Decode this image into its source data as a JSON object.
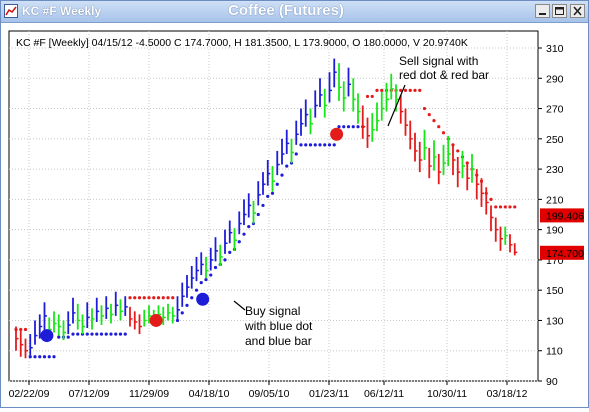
{
  "window": {
    "title_left": "KC #F Weekly",
    "title_center": "Coffee (Futures)"
  },
  "chart_data": {
    "type": "bar",
    "style": "price bars with stop dots",
    "header": "KC #F [Weekly] 04/15/12  -4.5000  C 174.7000,  H 181.3500,  L 173.9000,  O 180.0000,  V 20.9740K",
    "x_tick_labels": [
      "02/22/09",
      "07/12/09",
      "11/29/09",
      "04/18/10",
      "09/05/10",
      "01/23/11",
      "06/12/11",
      "10/30/11",
      "03/18/12"
    ],
    "y_tick_labels": [
      "90",
      "110",
      "130",
      "150",
      "170",
      "190",
      "210",
      "230",
      "250",
      "270",
      "290",
      "310"
    ],
    "ylim": [
      90,
      315
    ],
    "grid": true,
    "price_markers": [
      {
        "label": "199.406",
        "value": 199.406,
        "color": "#e00000"
      },
      {
        "label": "174.700",
        "value": 174.7,
        "color": "#e00000"
      }
    ],
    "series": [
      {
        "name": "bar colors",
        "colors": {
          "up": "#19e619",
          "down": "#1d1dd8",
          "sell": "#e41b1b"
        }
      },
      {
        "name": "stop dots",
        "colors": {
          "buy": "#1d1dd8",
          "sell": "#e41b1b"
        }
      }
    ],
    "bars": [
      [
        118,
        126,
        110,
        "r"
      ],
      [
        114,
        123,
        106,
        "r"
      ],
      [
        110,
        118,
        105,
        "r"
      ],
      [
        112,
        121,
        107,
        "b"
      ],
      [
        120,
        130,
        114,
        "b"
      ],
      [
        126,
        134,
        118,
        "b"
      ],
      [
        133,
        142,
        122,
        "b"
      ],
      [
        124,
        132,
        118,
        "g"
      ],
      [
        128,
        136,
        122,
        "g"
      ],
      [
        126,
        134,
        120,
        "g"
      ],
      [
        122,
        130,
        117,
        "g"
      ],
      [
        127,
        136,
        121,
        "b"
      ],
      [
        135,
        145,
        128,
        "b"
      ],
      [
        130,
        141,
        124,
        "g"
      ],
      [
        126,
        134,
        121,
        "g"
      ],
      [
        132,
        142,
        125,
        "b"
      ],
      [
        131,
        138,
        124,
        "g"
      ],
      [
        136,
        145,
        129,
        "b"
      ],
      [
        133,
        140,
        127,
        "g"
      ],
      [
        138,
        146,
        131,
        "b"
      ],
      [
        134,
        141,
        128,
        "g"
      ],
      [
        140,
        149,
        133,
        "b"
      ],
      [
        136,
        144,
        130,
        "g"
      ],
      [
        139,
        146,
        133,
        "b"
      ],
      [
        131,
        139,
        126,
        "r"
      ],
      [
        129,
        136,
        124,
        "r"
      ],
      [
        126,
        134,
        121,
        "r"
      ],
      [
        130,
        137,
        126,
        "g"
      ],
      [
        133,
        140,
        128,
        "g"
      ],
      [
        131,
        137,
        127,
        "g"
      ],
      [
        134,
        140,
        129,
        "g"
      ],
      [
        132,
        139,
        127,
        "g"
      ],
      [
        135,
        141,
        130,
        "g"
      ],
      [
        133,
        139,
        128,
        "g"
      ],
      [
        137,
        146,
        131,
        "b"
      ],
      [
        146,
        155,
        139,
        "b"
      ],
      [
        152,
        160,
        145,
        "b"
      ],
      [
        158,
        166,
        151,
        "b"
      ],
      [
        163,
        172,
        156,
        "b"
      ],
      [
        167,
        175,
        160,
        "b"
      ],
      [
        163,
        172,
        158,
        "g"
      ],
      [
        170,
        178,
        163,
        "b"
      ],
      [
        176,
        185,
        169,
        "b"
      ],
      [
        172,
        180,
        166,
        "g"
      ],
      [
        181,
        190,
        174,
        "b"
      ],
      [
        188,
        196,
        181,
        "b"
      ],
      [
        183,
        191,
        176,
        "g"
      ],
      [
        194,
        202,
        187,
        "b"
      ],
      [
        200,
        210,
        193,
        "b"
      ],
      [
        206,
        214,
        198,
        "b"
      ],
      [
        201,
        209,
        194,
        "g"
      ],
      [
        213,
        222,
        206,
        "b"
      ],
      [
        220,
        228,
        213,
        "b"
      ],
      [
        227,
        236,
        219,
        "b"
      ],
      [
        222,
        232,
        215,
        "g"
      ],
      [
        233,
        242,
        226,
        "b"
      ],
      [
        240,
        250,
        233,
        "b"
      ],
      [
        247,
        256,
        240,
        "b"
      ],
      [
        241,
        250,
        234,
        "g"
      ],
      [
        253,
        262,
        246,
        "b"
      ],
      [
        260,
        270,
        252,
        "b"
      ],
      [
        266,
        276,
        258,
        "b"
      ],
      [
        260,
        270,
        253,
        "g"
      ],
      [
        272,
        282,
        264,
        "b"
      ],
      [
        279,
        290,
        271,
        "b"
      ],
      [
        272,
        283,
        264,
        "g"
      ],
      [
        282,
        294,
        274,
        "b"
      ],
      [
        294,
        303,
        284,
        "b"
      ],
      [
        284,
        300,
        275,
        "g"
      ],
      [
        277,
        288,
        268,
        "g"
      ],
      [
        286,
        297,
        278,
        "b"
      ],
      [
        276,
        290,
        268,
        "g"
      ],
      [
        268,
        280,
        260,
        "g"
      ],
      [
        258,
        272,
        250,
        "r"
      ],
      [
        252,
        264,
        244,
        "r"
      ],
      [
        256,
        267,
        248,
        "g"
      ],
      [
        262,
        274,
        255,
        "g"
      ],
      [
        270,
        281,
        262,
        "g"
      ],
      [
        276,
        287,
        268,
        "g"
      ],
      [
        283,
        293,
        276,
        "g"
      ],
      [
        276,
        286,
        268,
        "g"
      ],
      [
        268,
        279,
        260,
        "r"
      ],
      [
        259,
        270,
        252,
        "r"
      ],
      [
        250,
        262,
        243,
        "r"
      ],
      [
        242,
        254,
        235,
        "r"
      ],
      [
        236,
        248,
        228,
        "r"
      ],
      [
        244,
        256,
        236,
        "g"
      ],
      [
        232,
        244,
        224,
        "r"
      ],
      [
        238,
        249,
        229,
        "g"
      ],
      [
        228,
        240,
        220,
        "r"
      ],
      [
        234,
        246,
        226,
        "g"
      ],
      [
        240,
        252,
        232,
        "g"
      ],
      [
        236,
        246,
        226,
        "r"
      ],
      [
        228,
        238,
        218,
        "r"
      ],
      [
        232,
        242,
        224,
        "g"
      ],
      [
        224,
        234,
        216,
        "r"
      ],
      [
        230,
        240,
        221,
        "g"
      ],
      [
        220,
        230,
        210,
        "r"
      ],
      [
        214,
        224,
        205,
        "r"
      ],
      [
        208,
        218,
        200,
        "r"
      ],
      [
        198,
        206,
        189,
        "r"
      ],
      [
        190,
        198,
        182,
        "r"
      ],
      [
        184,
        192,
        176,
        "r"
      ],
      [
        186,
        192,
        180,
        "g"
      ],
      [
        180,
        187,
        175,
        "r"
      ],
      [
        175,
        181,
        173,
        "r"
      ]
    ],
    "dots": [
      [
        0,
        124,
        "r"
      ],
      [
        1,
        124,
        "r"
      ],
      [
        2,
        124,
        "r"
      ],
      [
        3,
        106,
        "b"
      ],
      [
        4,
        106,
        "b"
      ],
      [
        5,
        106,
        "b"
      ],
      [
        6,
        106,
        "b"
      ],
      [
        7,
        106,
        "b"
      ],
      [
        8,
        106,
        "b"
      ],
      [
        9,
        119,
        "b"
      ],
      [
        10,
        119,
        "b"
      ],
      [
        11,
        119,
        "b"
      ],
      [
        12,
        121,
        "b"
      ],
      [
        13,
        121,
        "b"
      ],
      [
        14,
        121,
        "b"
      ],
      [
        15,
        121,
        "b"
      ],
      [
        16,
        121,
        "b"
      ],
      [
        17,
        121,
        "b"
      ],
      [
        18,
        121,
        "b"
      ],
      [
        19,
        121,
        "b"
      ],
      [
        20,
        121,
        "b"
      ],
      [
        21,
        121,
        "b"
      ],
      [
        22,
        121,
        "b"
      ],
      [
        23,
        121,
        "b"
      ],
      [
        24,
        145,
        "r"
      ],
      [
        25,
        145,
        "r"
      ],
      [
        26,
        145,
        "r"
      ],
      [
        27,
        145,
        "r"
      ],
      [
        28,
        145,
        "r"
      ],
      [
        29,
        145,
        "r"
      ],
      [
        30,
        145,
        "r"
      ],
      [
        31,
        145,
        "r"
      ],
      [
        32,
        145,
        "r"
      ],
      [
        33,
        145,
        "r"
      ],
      [
        34,
        130,
        "b"
      ],
      [
        35,
        135,
        "b"
      ],
      [
        36,
        140,
        "b"
      ],
      [
        37,
        145,
        "b"
      ],
      [
        38,
        150,
        "b"
      ],
      [
        39,
        155,
        "b"
      ],
      [
        40,
        157,
        "b"
      ],
      [
        41,
        160,
        "b"
      ],
      [
        42,
        165,
        "b"
      ],
      [
        43,
        167,
        "b"
      ],
      [
        44,
        170,
        "b"
      ],
      [
        45,
        175,
        "b"
      ],
      [
        46,
        177,
        "b"
      ],
      [
        47,
        182,
        "b"
      ],
      [
        48,
        187,
        "b"
      ],
      [
        49,
        192,
        "b"
      ],
      [
        50,
        194,
        "b"
      ],
      [
        51,
        200,
        "b"
      ],
      [
        52,
        206,
        "b"
      ],
      [
        53,
        212,
        "b"
      ],
      [
        54,
        214,
        "b"
      ],
      [
        55,
        220,
        "b"
      ],
      [
        56,
        226,
        "b"
      ],
      [
        57,
        232,
        "b"
      ],
      [
        58,
        234,
        "b"
      ],
      [
        59,
        240,
        "b"
      ],
      [
        60,
        246,
        "b"
      ],
      [
        61,
        246,
        "b"
      ],
      [
        62,
        246,
        "b"
      ],
      [
        63,
        246,
        "b"
      ],
      [
        64,
        246,
        "b"
      ],
      [
        65,
        246,
        "b"
      ],
      [
        66,
        246,
        "b"
      ],
      [
        67,
        246,
        "b"
      ],
      [
        68,
        258,
        "b"
      ],
      [
        69,
        258,
        "b"
      ],
      [
        70,
        258,
        "b"
      ],
      [
        71,
        258,
        "b"
      ],
      [
        72,
        258,
        "b"
      ],
      [
        73,
        258,
        "b"
      ],
      [
        74,
        278,
        "r"
      ],
      [
        75,
        278,
        "r"
      ],
      [
        76,
        282,
        "r"
      ],
      [
        77,
        282,
        "r"
      ],
      [
        78,
        282,
        "r"
      ],
      [
        79,
        282,
        "r"
      ],
      [
        80,
        282,
        "r"
      ],
      [
        81,
        282,
        "r"
      ],
      [
        82,
        282,
        "r"
      ],
      [
        83,
        282,
        "r"
      ],
      [
        84,
        282,
        "r"
      ],
      [
        85,
        282,
        "r"
      ],
      [
        86,
        270,
        "r"
      ],
      [
        87,
        266,
        "r"
      ],
      [
        88,
        262,
        "r"
      ],
      [
        89,
        258,
        "r"
      ],
      [
        90,
        254,
        "r"
      ],
      [
        91,
        250,
        "r"
      ],
      [
        92,
        246,
        "r"
      ],
      [
        93,
        242,
        "r"
      ],
      [
        94,
        238,
        "r"
      ],
      [
        95,
        234,
        "r"
      ],
      [
        96,
        230,
        "r"
      ],
      [
        97,
        226,
        "r"
      ],
      [
        98,
        222,
        "r"
      ],
      [
        99,
        214,
        "r"
      ],
      [
        100,
        210,
        "r"
      ],
      [
        101,
        205,
        "r"
      ],
      [
        102,
        205,
        "r"
      ],
      [
        103,
        205,
        "r"
      ],
      [
        104,
        205,
        "r"
      ],
      [
        105,
        205,
        "r"
      ]
    ],
    "signal_circles": [
      {
        "i": 6.5,
        "y": 120,
        "color": "#1d1dd8"
      },
      {
        "i": 29.5,
        "y": 130,
        "color": "#e41b1b"
      },
      {
        "i": 39.3,
        "y": 144,
        "color": "#1d1dd8"
      },
      {
        "i": 67.5,
        "y": 253,
        "color": "#e41b1b"
      }
    ],
    "annotations": [
      {
        "lines": [
          "Sell signal with",
          "red dot & red bar"
        ]
      },
      {
        "lines": [
          "Buy signal",
          "with blue dot",
          "and blue bar"
        ]
      }
    ]
  }
}
